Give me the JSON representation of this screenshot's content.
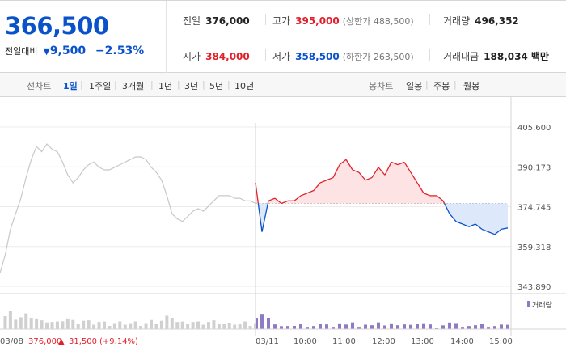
{
  "summary": {
    "price": "366,500",
    "change_label": "전일대비",
    "change_arrow": "▼",
    "change": "9,500",
    "change_pct": "−2.53%"
  },
  "stats": {
    "prev_close_label": "전일",
    "prev_close": "376,000",
    "high_label": "고가",
    "high": "395,000",
    "upper_limit": "(상한가 488,500)",
    "volume_label": "거래량",
    "volume": "496,352",
    "open_label": "시가",
    "open": "384,000",
    "low_label": "저가",
    "low": "358,500",
    "lower_limit": "(하한가 263,500)",
    "value_label": "거래대금",
    "value": "188,034",
    "value_unit": "백만"
  },
  "line_tabs": {
    "label": "선차트",
    "items": [
      "1일",
      "1주일",
      "3개월",
      "1년",
      "3년",
      "5년",
      "10년"
    ],
    "active": "1일"
  },
  "candle_tabs": {
    "label": "봉차트",
    "items": [
      "일봉",
      "주봉",
      "월봉"
    ]
  },
  "footer": {
    "prev_date": "03/08",
    "prev_close": "376,000",
    "prev_arrow": "▲",
    "prev_change": "31,500",
    "prev_pct": "(+9.14%)"
  },
  "colors": {
    "up": "#e0212b",
    "down": "#0a52c9",
    "up_fill": "#fde3e3",
    "down_fill": "#dde9fa",
    "prev_line": "#c8c8c8",
    "volume_today": "#8f7bc4",
    "volume_prev": "#d0d0d0"
  },
  "chart_data": {
    "type": "line",
    "y_ticks": [
      "405,600",
      "390,173",
      "374,745",
      "359,318",
      "343,890"
    ],
    "ylim": [
      343890,
      405600
    ],
    "baseline": 376000,
    "x_ticks": [
      "03/11",
      "10:00",
      "11:00",
      "12:00",
      "13:00",
      "14:00",
      "15:00"
    ],
    "volume_legend": "거래량",
    "series": [
      {
        "date": "03/08",
        "values": [
          349000,
          356000,
          366000,
          372000,
          378000,
          386000,
          393000,
          398000,
          396000,
          399000,
          397000,
          396000,
          392000,
          387000,
          384000,
          386000,
          389000,
          391000,
          392000,
          390000,
          389000,
          389000,
          390000,
          391000,
          392000,
          393000,
          394000,
          394000,
          393000,
          390000,
          388000,
          385000,
          379000,
          372000,
          370000,
          369000,
          371000,
          373000,
          374000,
          373000,
          375000,
          377000,
          379000,
          379000,
          379000,
          378000,
          378000,
          377000,
          377000,
          376000
        ]
      },
      {
        "date": "03/11",
        "times": [
          "09:00",
          "09:10",
          "09:20",
          "09:30",
          "09:40",
          "09:50",
          "10:00",
          "10:10",
          "10:20",
          "10:30",
          "10:40",
          "10:50",
          "11:00",
          "11:10",
          "11:20",
          "11:30",
          "11:40",
          "11:50",
          "12:00",
          "12:10",
          "12:20",
          "12:30",
          "12:40",
          "12:50",
          "13:00",
          "13:10",
          "13:20",
          "13:30",
          "13:40",
          "13:50",
          "14:00",
          "14:10",
          "14:20",
          "14:30",
          "14:40",
          "14:50",
          "15:00",
          "15:10",
          "15:20",
          "15:30"
        ],
        "values": [
          384000,
          365000,
          377000,
          378000,
          376000,
          377000,
          377000,
          379000,
          380000,
          381000,
          384000,
          385000,
          386000,
          391000,
          393000,
          389000,
          388000,
          385000,
          386000,
          390000,
          387000,
          392000,
          391000,
          392000,
          388000,
          384000,
          380000,
          379000,
          379000,
          377000,
          372000,
          369000,
          368000,
          367000,
          368000,
          366000,
          365000,
          364000,
          366000,
          366500
        ]
      }
    ]
  }
}
